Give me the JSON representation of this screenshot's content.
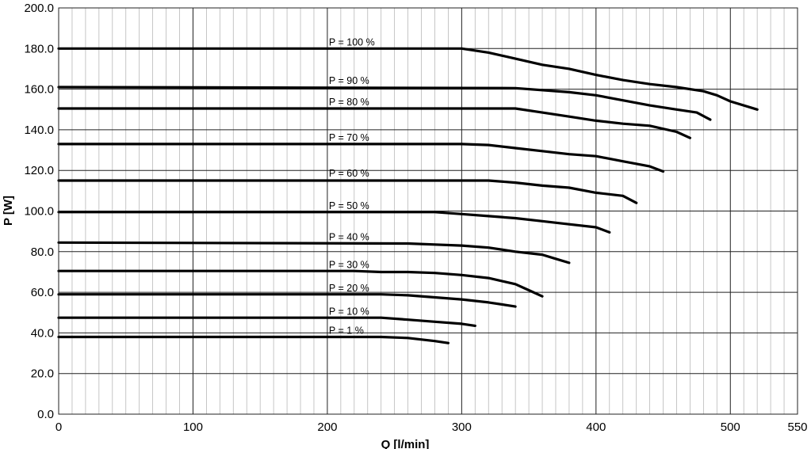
{
  "chart_data": {
    "type": "line",
    "xlabel": "Q [l/min]",
    "ylabel": "P [W]",
    "xlim": [
      0,
      550
    ],
    "ylim": [
      0,
      200
    ],
    "x_ticks": [
      "0",
      "100",
      "200",
      "300",
      "400",
      "500",
      "550"
    ],
    "y_ticks": [
      "0.0",
      "20.0",
      "40.0",
      "60.0",
      "80.0",
      "100.0",
      "120.0",
      "140.0",
      "160.0",
      "180.0",
      "200.0"
    ],
    "grid": true,
    "series": [
      {
        "name": "P = 100 %",
        "x": [
          0,
          300,
          320,
          340,
          360,
          380,
          400,
          420,
          440,
          460,
          480,
          490,
          500,
          520
        ],
        "y": [
          180,
          180,
          178,
          175,
          172,
          170,
          167,
          164.5,
          162.5,
          161,
          159,
          157,
          154,
          150
        ]
      },
      {
        "name": "P = 90 %",
        "x": [
          0,
          340,
          380,
          400,
          420,
          440,
          460,
          475,
          485
        ],
        "y": [
          161,
          160.5,
          158.5,
          157,
          154.5,
          152,
          150,
          148.5,
          145
        ]
      },
      {
        "name": "P = 80 %",
        "x": [
          0,
          340,
          360,
          380,
          400,
          420,
          440,
          460,
          470
        ],
        "y": [
          150.5,
          150.5,
          148.5,
          146.5,
          144.5,
          143,
          142,
          139,
          136
        ]
      },
      {
        "name": "P = 70 %",
        "x": [
          0,
          300,
          320,
          340,
          360,
          380,
          400,
          420,
          440,
          450
        ],
        "y": [
          133,
          133,
          132.5,
          131,
          129.5,
          128,
          127,
          124.5,
          122,
          119.5
        ]
      },
      {
        "name": "P = 60 %",
        "x": [
          0,
          320,
          340,
          360,
          380,
          400,
          420,
          430
        ],
        "y": [
          115,
          115,
          114,
          112.5,
          111.5,
          109,
          107.5,
          104
        ]
      },
      {
        "name": "P = 50 %",
        "x": [
          0,
          280,
          300,
          320,
          340,
          360,
          380,
          400,
          410
        ],
        "y": [
          99.5,
          99.5,
          98.5,
          97.5,
          96.5,
          95,
          93.5,
          92,
          89.5
        ]
      },
      {
        "name": "P = 40 %",
        "x": [
          0,
          260,
          280,
          300,
          320,
          340,
          360,
          370,
          380
        ],
        "y": [
          84.5,
          84,
          83.5,
          83,
          82,
          80,
          78.5,
          76.5,
          74.5
        ]
      },
      {
        "name": "P = 30 %",
        "x": [
          0,
          220,
          240,
          260,
          280,
          300,
          320,
          340,
          350,
          360
        ],
        "y": [
          70.5,
          70.5,
          70,
          70,
          69.5,
          68.5,
          67,
          64,
          61,
          58
        ]
      },
      {
        "name": "P = 20 %",
        "x": [
          0,
          240,
          260,
          280,
          300,
          320,
          340
        ],
        "y": [
          59,
          59,
          58.5,
          57.5,
          56.5,
          55,
          53
        ]
      },
      {
        "name": "P = 10 %",
        "x": [
          0,
          240,
          260,
          280,
          300,
          310
        ],
        "y": [
          47.5,
          47.5,
          46.5,
          45.5,
          44.5,
          43.5
        ]
      },
      {
        "name": "P = 1 %",
        "x": [
          0,
          240,
          260,
          280,
          290
        ],
        "y": [
          38,
          38,
          37.5,
          36,
          35
        ]
      }
    ],
    "label_x": 200,
    "label_y": [
      181.5,
      162.5,
      152,
      134.5,
      117,
      101,
      85.5,
      72,
      60.5,
      49,
      39.5
    ]
  }
}
